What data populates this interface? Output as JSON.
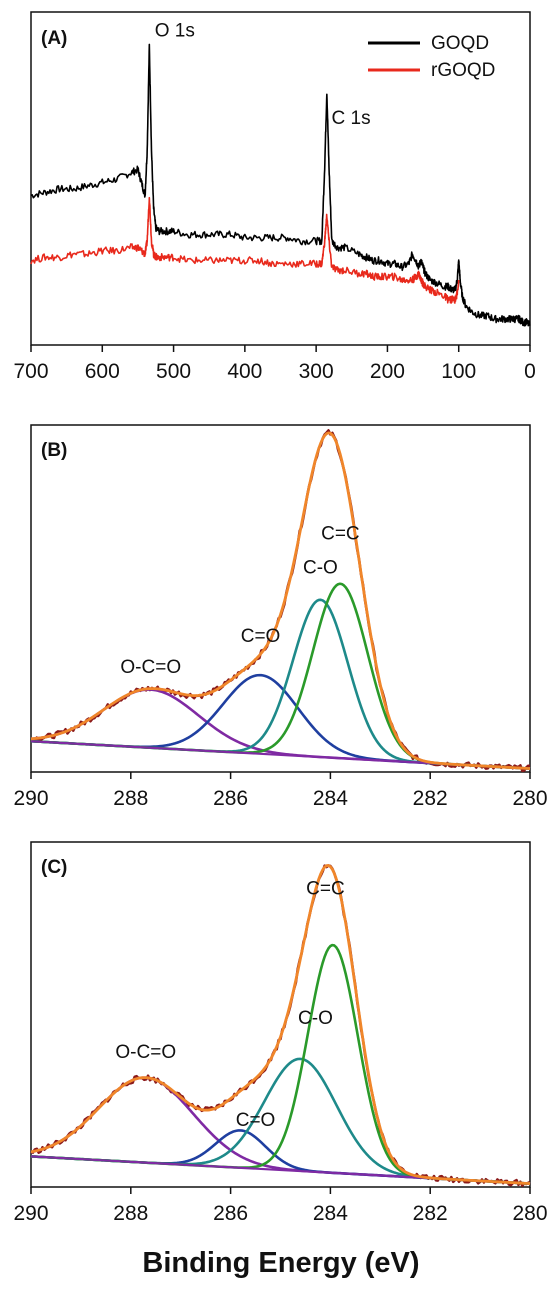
{
  "chart_data": [
    {
      "type": "line",
      "panel": "(A)",
      "xlabel": "",
      "ylabel": "",
      "x_reversed": true,
      "xlim": [
        700,
        0
      ],
      "ylim": [
        0,
        100
      ],
      "x_ticks": [
        "700",
        "600",
        "500",
        "400",
        "300",
        "200",
        "100",
        "0"
      ],
      "x_tick_values": [
        700,
        600,
        500,
        400,
        300,
        200,
        100,
        0
      ],
      "legend": {
        "placement": "top-right",
        "entries": [
          "GOQD",
          "rGOQD"
        ]
      },
      "annotations": [
        {
          "text": "O 1s",
          "x": 532,
          "y": 95
        },
        {
          "text": "C 1s",
          "x": 284,
          "y": 68
        }
      ],
      "series": [
        {
          "name": "GOQD",
          "color": "#000000",
          "x": [
            700,
            680,
            660,
            640,
            620,
            600,
            580,
            560,
            550,
            545,
            540,
            537,
            534,
            531,
            528,
            525,
            520,
            510,
            500,
            480,
            460,
            440,
            420,
            400,
            380,
            360,
            340,
            320,
            300,
            292,
            288,
            285,
            282,
            278,
            270,
            260,
            240,
            230,
            220,
            210,
            200,
            190,
            180,
            170,
            165,
            160,
            156,
            153,
            150,
            147,
            140,
            130,
            120,
            115,
            110,
            105,
            102,
            100,
            98,
            95,
            90,
            80,
            70,
            60,
            50,
            40,
            30,
            25,
            20,
            15,
            10,
            5,
            0
          ],
          "y": [
            46,
            47,
            48,
            48,
            49,
            50,
            51,
            53,
            54,
            50,
            46,
            60,
            92,
            60,
            42,
            36,
            35,
            35,
            35,
            34,
            34,
            34,
            34,
            33,
            33,
            33,
            33,
            32,
            32,
            32,
            55,
            78,
            55,
            32,
            30,
            30,
            28,
            27,
            26,
            26,
            25,
            25,
            24,
            25,
            28,
            26,
            24,
            26,
            24,
            22,
            20,
            19,
            18,
            18,
            17,
            17,
            20,
            26,
            20,
            15,
            12,
            10,
            9,
            9,
            8,
            8,
            8,
            8,
            8,
            8,
            7,
            7,
            6
          ]
        },
        {
          "name": "rGOQD",
          "color": "#e8291c",
          "x": [
            700,
            680,
            660,
            640,
            620,
            600,
            580,
            560,
            550,
            545,
            540,
            537,
            534,
            531,
            528,
            525,
            520,
            510,
            500,
            480,
            460,
            440,
            420,
            400,
            380,
            360,
            340,
            320,
            300,
            292,
            288,
            285,
            282,
            278,
            270,
            260,
            240,
            230,
            220,
            210,
            200,
            190,
            180,
            170,
            165,
            160,
            156,
            153,
            150,
            147,
            140,
            130,
            120,
            115,
            110,
            105,
            102,
            100
          ],
          "y": [
            26,
            27,
            27,
            28,
            28,
            29,
            29,
            30,
            30,
            29,
            28,
            32,
            46,
            32,
            28,
            27,
            27,
            27,
            27,
            26,
            26,
            26,
            26,
            26,
            26,
            25,
            25,
            25,
            25,
            25,
            32,
            40,
            32,
            24,
            23,
            23,
            22,
            22,
            21,
            21,
            21,
            21,
            20,
            20,
            20,
            21,
            22,
            20,
            19,
            18,
            17,
            16,
            15,
            14,
            14,
            14,
            16,
            20
          ]
        }
      ]
    },
    {
      "type": "line",
      "panel": "(B)",
      "xlabel": "",
      "ylabel": "",
      "x_reversed": true,
      "xlim": [
        290,
        280
      ],
      "ylim": [
        0,
        100
      ],
      "x_ticks": [
        "290",
        "288",
        "286",
        "284",
        "282",
        "280"
      ],
      "x_tick_values": [
        290,
        288,
        286,
        284,
        282,
        280
      ],
      "baseline": {
        "x": [
          290,
          280
        ],
        "y": [
          9,
          1
        ]
      },
      "components": [
        {
          "label": "O-C=O",
          "center": 287.6,
          "amplitude": 17,
          "sigma": 0.95,
          "color": "#7f2aa3"
        },
        {
          "label": "C=O",
          "center": 285.4,
          "amplitude": 23,
          "sigma": 0.75,
          "color": "#1f3fa0"
        },
        {
          "label": "C-O",
          "center": 284.2,
          "amplitude": 46,
          "sigma": 0.55,
          "color": "#1e8a8a"
        },
        {
          "label": "C=C",
          "center": 283.8,
          "amplitude": 51,
          "sigma": 0.55,
          "color": "#2a9a2a"
        }
      ],
      "annotations": [
        {
          "text": "O-C=O",
          "x": 287.6,
          "y": 29
        },
        {
          "text": "C=O",
          "x": 285.4,
          "y": 38
        },
        {
          "text": "C-O",
          "x": 284.2,
          "y": 58
        },
        {
          "text": "C=C",
          "x": 283.8,
          "y": 68
        }
      ],
      "envelope_color": "#f0862a",
      "raw_color": "#8b1a1a"
    },
    {
      "type": "line",
      "panel": "(C)",
      "xlabel": "Binding Energy (eV)",
      "ylabel": "",
      "x_reversed": true,
      "xlim": [
        290,
        280
      ],
      "ylim": [
        0,
        100
      ],
      "x_ticks": [
        "290",
        "288",
        "286",
        "284",
        "282",
        "280"
      ],
      "x_tick_values": [
        290,
        288,
        286,
        284,
        282,
        280
      ],
      "baseline": {
        "x": [
          290,
          280
        ],
        "y": [
          9,
          1
        ]
      },
      "components": [
        {
          "label": "O-C=O",
          "center": 287.7,
          "amplitude": 25,
          "sigma": 0.95,
          "color": "#7f2aa3"
        },
        {
          "label": "C=O",
          "center": 285.8,
          "amplitude": 11,
          "sigma": 0.5,
          "color": "#1f3fa0"
        },
        {
          "label": "C-O",
          "center": 284.6,
          "amplitude": 33,
          "sigma": 0.72,
          "color": "#1e8a8a"
        },
        {
          "label": "C=C",
          "center": 283.95,
          "amplitude": 67,
          "sigma": 0.5,
          "color": "#2a9a2a"
        }
      ],
      "annotations": [
        {
          "text": "O-C=O",
          "x": 287.7,
          "y": 38
        },
        {
          "text": "C=O",
          "x": 285.5,
          "y": 18
        },
        {
          "text": "C-O",
          "x": 284.3,
          "y": 48
        },
        {
          "text": "C=C",
          "x": 284.1,
          "y": 86
        }
      ],
      "envelope_color": "#f0862a",
      "raw_color": "#8b1a1a"
    }
  ]
}
